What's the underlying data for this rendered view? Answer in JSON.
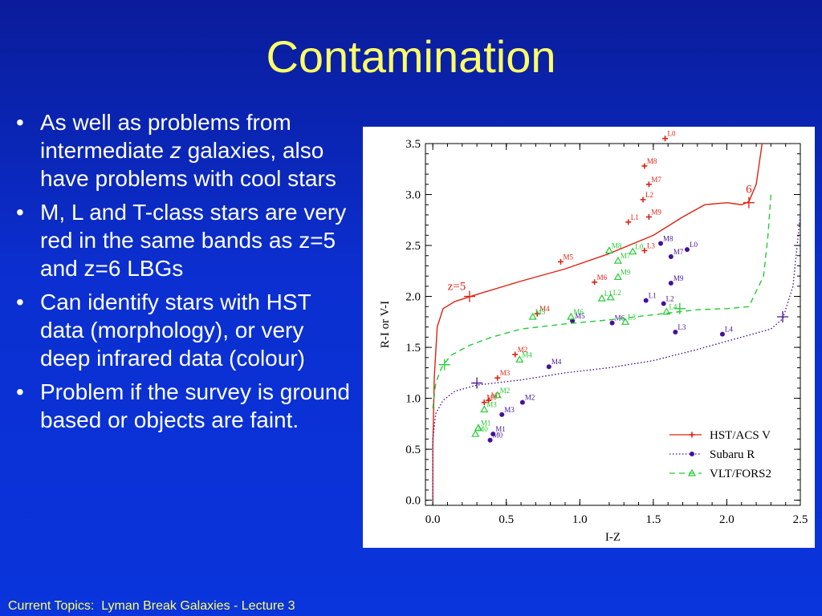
{
  "slide": {
    "title": "Contamination",
    "footer": "Current Topics:  Lyman Break Galaxies - Lecture 3",
    "bullets": [
      {
        "pre": "As well as problems from intermediate ",
        "em": "z",
        "post": " galaxies, also have problems with cool stars"
      },
      {
        "pre": "M, L and T-class stars are very red in the same bands as z=5 and z=6 LBGs",
        "em": "",
        "post": ""
      },
      {
        "pre": "Can identify stars with HST data (morphology), or very deep infrared data (colour)",
        "em": "",
        "post": ""
      },
      {
        "pre": "Problem if the survey is ground based or objects are faint.",
        "em": "",
        "post": ""
      }
    ]
  },
  "chart_data": {
    "type": "scatter",
    "xlabel": "I-Z",
    "ylabel": "R-I or V-I",
    "xlim": [
      -0.05,
      2.5
    ],
    "ylim": [
      -0.05,
      3.5
    ],
    "xticks": [
      "0.0",
      "0.5",
      "1.0",
      "1.5",
      "2.0",
      "2.5"
    ],
    "xtick_values": [
      0,
      0.5,
      1,
      1.5,
      2,
      2.5
    ],
    "yticks": [
      "0.0",
      "0.5",
      "1.0",
      "1.5",
      "2.0",
      "2.5",
      "3.0",
      "3.5"
    ],
    "ytick_values": [
      0,
      0.5,
      1,
      1.5,
      2,
      2.5,
      3,
      3.5
    ],
    "legend_position": "bottom-right",
    "series": [
      {
        "name": "HST/ACS V",
        "color": "#dd2211",
        "line": "solid",
        "marker": "plus",
        "track": [
          [
            0.0,
            0.0
          ],
          [
            0.0,
            0.5
          ],
          [
            0.01,
            1.2
          ],
          [
            0.03,
            1.7
          ],
          [
            0.07,
            1.88
          ],
          [
            0.15,
            1.95
          ],
          [
            0.3,
            2.02
          ],
          [
            0.6,
            2.15
          ],
          [
            0.9,
            2.27
          ],
          [
            1.2,
            2.42
          ],
          [
            1.5,
            2.6
          ],
          [
            1.7,
            2.78
          ],
          [
            1.85,
            2.9
          ],
          [
            2.0,
            2.92
          ],
          [
            2.1,
            2.9
          ],
          [
            2.15,
            2.93
          ],
          [
            2.2,
            3.1
          ],
          [
            2.24,
            3.5
          ]
        ],
        "track_marks": [
          {
            "x": 0.25,
            "y": 2.0,
            "label": "z=5"
          },
          {
            "x": 2.15,
            "y": 2.92,
            "label": "6"
          }
        ],
        "stars": [
          {
            "x": 1.58,
            "y": 3.55,
            "label": "L0"
          },
          {
            "x": 1.44,
            "y": 3.28,
            "label": "M8"
          },
          {
            "x": 1.47,
            "y": 3.1,
            "label": "M7"
          },
          {
            "x": 1.43,
            "y": 2.95,
            "label": "L2"
          },
          {
            "x": 1.47,
            "y": 2.78,
            "label": "M9"
          },
          {
            "x": 1.33,
            "y": 2.73,
            "label": "L1"
          },
          {
            "x": 1.44,
            "y": 2.45,
            "label": "L3"
          },
          {
            "x": 0.87,
            "y": 2.34,
            "label": "M5"
          },
          {
            "x": 1.1,
            "y": 2.14,
            "label": "M6"
          },
          {
            "x": 0.71,
            "y": 1.83,
            "label": "M4"
          },
          {
            "x": 0.56,
            "y": 1.43,
            "label": "M2"
          },
          {
            "x": 0.44,
            "y": 1.2,
            "label": "M3"
          },
          {
            "x": 0.38,
            "y": 0.98,
            "label": "M1"
          },
          {
            "x": 0.35,
            "y": 0.96,
            "label": "M0"
          }
        ]
      },
      {
        "name": "Subaru R",
        "color": "#441199",
        "line": "dotted",
        "marker": "dot",
        "track": [
          [
            0.0,
            0.0
          ],
          [
            0.0,
            0.6
          ],
          [
            0.02,
            0.85
          ],
          [
            0.07,
            0.98
          ],
          [
            0.15,
            1.07
          ],
          [
            0.3,
            1.13
          ],
          [
            0.6,
            1.18
          ],
          [
            0.9,
            1.25
          ],
          [
            1.2,
            1.3
          ],
          [
            1.5,
            1.37
          ],
          [
            1.8,
            1.48
          ],
          [
            2.1,
            1.6
          ],
          [
            2.3,
            1.68
          ],
          [
            2.38,
            1.78
          ],
          [
            2.45,
            2.1
          ],
          [
            2.5,
            2.8
          ]
        ],
        "track_marks": [
          {
            "x": 0.3,
            "y": 1.15,
            "label": ""
          },
          {
            "x": 2.38,
            "y": 1.8,
            "label": ""
          }
        ],
        "stars": [
          {
            "x": 1.55,
            "y": 2.52,
            "label": "M8"
          },
          {
            "x": 1.73,
            "y": 2.46,
            "label": "L0"
          },
          {
            "x": 1.62,
            "y": 2.39,
            "label": "M7"
          },
          {
            "x": 1.62,
            "y": 2.13,
            "label": "M9"
          },
          {
            "x": 1.45,
            "y": 1.96,
            "label": "L1"
          },
          {
            "x": 1.57,
            "y": 1.93,
            "label": "L2"
          },
          {
            "x": 0.95,
            "y": 1.76,
            "label": "M5"
          },
          {
            "x": 1.22,
            "y": 1.74,
            "label": "M6"
          },
          {
            "x": 1.65,
            "y": 1.65,
            "label": "L3"
          },
          {
            "x": 1.97,
            "y": 1.63,
            "label": "L4"
          },
          {
            "x": 0.79,
            "y": 1.31,
            "label": "M4"
          },
          {
            "x": 0.61,
            "y": 0.96,
            "label": "M2"
          },
          {
            "x": 0.47,
            "y": 0.84,
            "label": "M3"
          },
          {
            "x": 0.41,
            "y": 0.65,
            "label": "M1"
          },
          {
            "x": 0.39,
            "y": 0.59,
            "label": "M0"
          }
        ]
      },
      {
        "name": "VLT/FORS2",
        "color": "#22cc33",
        "line": "dashed",
        "marker": "triangle",
        "track": [
          [
            0.0,
            0.9
          ],
          [
            0.02,
            1.15
          ],
          [
            0.06,
            1.3
          ],
          [
            0.12,
            1.42
          ],
          [
            0.25,
            1.52
          ],
          [
            0.4,
            1.6
          ],
          [
            0.6,
            1.68
          ],
          [
            0.9,
            1.73
          ],
          [
            1.2,
            1.77
          ],
          [
            1.5,
            1.82
          ],
          [
            1.8,
            1.87
          ],
          [
            2.0,
            1.88
          ],
          [
            2.15,
            1.9
          ],
          [
            2.25,
            2.2
          ],
          [
            2.28,
            2.6
          ],
          [
            2.3,
            3.0
          ]
        ],
        "track_marks": [
          {
            "x": 0.08,
            "y": 1.33,
            "label": ""
          },
          {
            "x": 1.68,
            "y": 1.88,
            "label": ""
          }
        ],
        "stars": [
          {
            "x": 1.2,
            "y": 2.45,
            "label": "M8"
          },
          {
            "x": 1.36,
            "y": 2.44,
            "label": "L0"
          },
          {
            "x": 1.26,
            "y": 2.35,
            "label": "M7"
          },
          {
            "x": 1.26,
            "y": 2.19,
            "label": "M9"
          },
          {
            "x": 1.15,
            "y": 1.98,
            "label": "L1"
          },
          {
            "x": 1.21,
            "y": 1.99,
            "label": "L2"
          },
          {
            "x": 0.94,
            "y": 1.8,
            "label": "M6"
          },
          {
            "x": 0.68,
            "y": 1.8,
            "label": "M5"
          },
          {
            "x": 1.31,
            "y": 1.75,
            "label": "L3"
          },
          {
            "x": 1.59,
            "y": 1.85,
            "label": "L4"
          },
          {
            "x": 0.59,
            "y": 1.38,
            "label": "M4"
          },
          {
            "x": 0.44,
            "y": 1.03,
            "label": "M2"
          },
          {
            "x": 0.35,
            "y": 0.89,
            "label": "M3"
          },
          {
            "x": 0.31,
            "y": 0.71,
            "label": "M1"
          },
          {
            "x": 0.29,
            "y": 0.65,
            "label": "M0"
          }
        ]
      }
    ]
  }
}
